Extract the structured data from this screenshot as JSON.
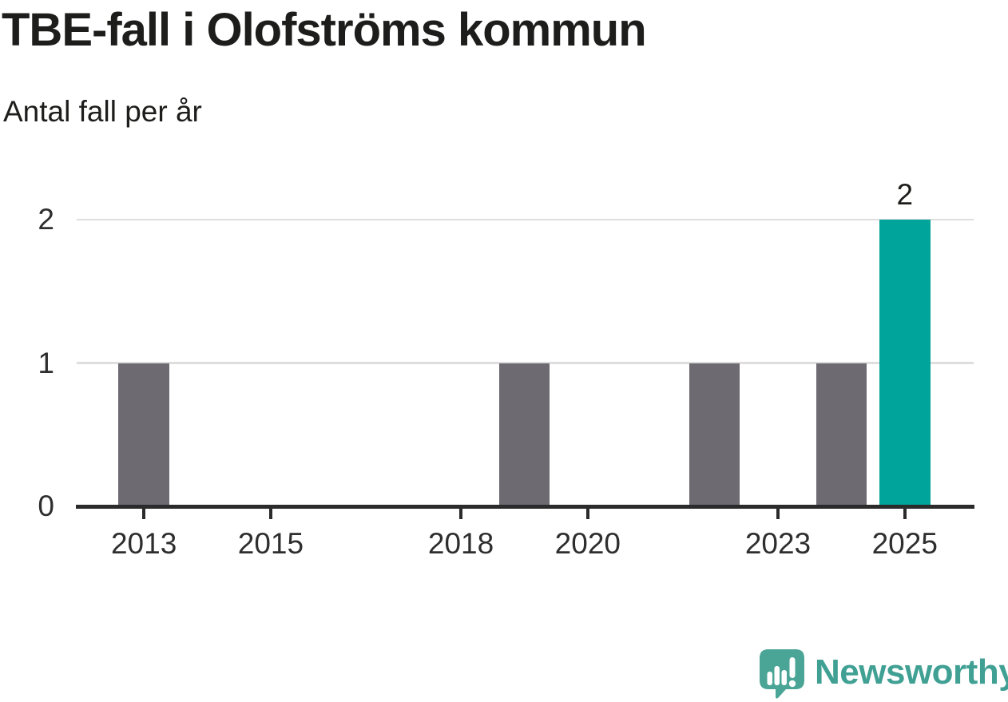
{
  "header": {
    "title": "TBE-fall i Olofströms kommun",
    "subtitle": "Antal fall per år"
  },
  "chart_data": {
    "type": "bar",
    "title": "TBE-fall i Olofströms kommun",
    "subtitle": "Antal fall per år",
    "xlabel": "",
    "ylabel": "",
    "ylim": [
      0,
      2
    ],
    "xlim": [
      2011.94,
      2026.08
    ],
    "y_ticks": [
      0,
      1,
      2
    ],
    "x_ticks": [
      2013,
      2015,
      2018,
      2020,
      2023,
      2025
    ],
    "grid": "horizontal-only",
    "legend": "none",
    "bars": [
      {
        "year": 2013,
        "value": 1
      },
      {
        "year": 2019,
        "value": 1
      },
      {
        "year": 2022,
        "value": 1
      },
      {
        "year": 2024,
        "value": 1
      },
      {
        "year": 2025,
        "value": 2,
        "highlight": true,
        "label": "2"
      }
    ],
    "colors": {
      "default_bar": "#6e6a72",
      "highlight_bar": "#00a49a",
      "axis": "#2b2b2b",
      "gridline": "#dedede",
      "text": "#1d1d1b"
    }
  },
  "footer": {
    "brand": "Newsworthy",
    "logo_icon": "newsworthy-speech-bubble-chart-icon",
    "brand_color": "#3fa093",
    "bubble_color": "#4aa596"
  }
}
